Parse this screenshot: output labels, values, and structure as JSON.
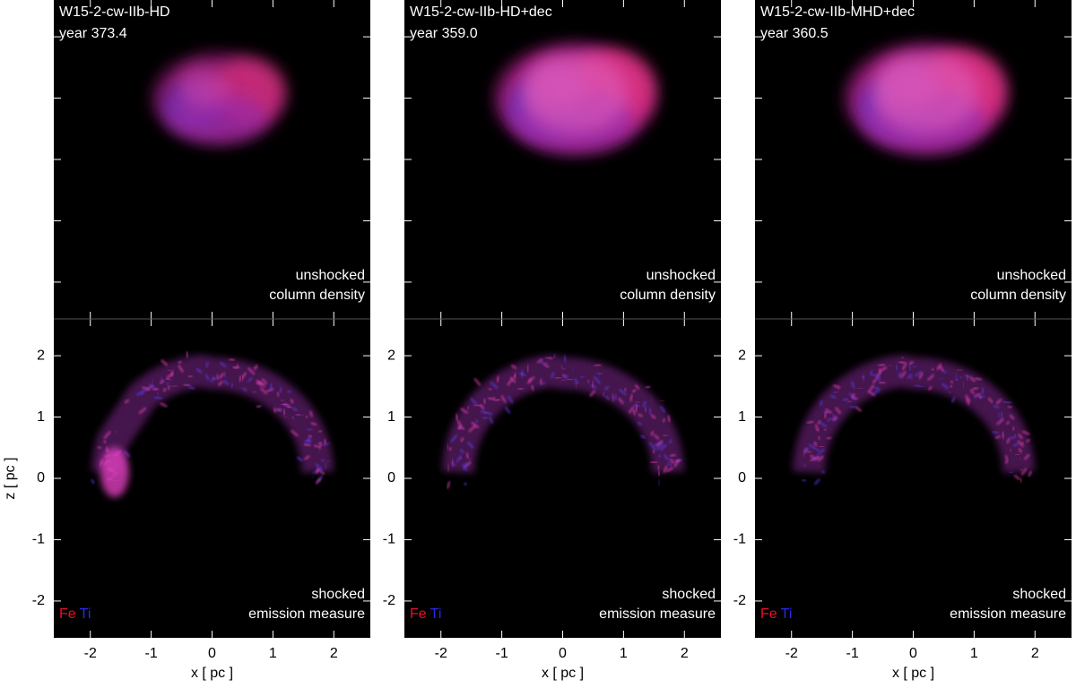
{
  "chart_data": [
    {
      "type": "image",
      "title": "W15-2-cw-IIb-HD",
      "subtitle": "year 373.4",
      "panels": [
        {
          "label": [
            "unshocked",
            "column density"
          ]
        },
        {
          "label": [
            "shocked",
            "emission measure"
          ],
          "legend": [
            {
              "name": "Fe",
              "color": "#e8102c"
            },
            {
              "name": "Ti",
              "color": "#2a2ae8"
            }
          ]
        }
      ],
      "xlabel": "x [ pc ]",
      "ylabel": "z [ pc ]",
      "xlim": [
        -2.6,
        2.6
      ],
      "ylim": [
        -2.6,
        2.6
      ],
      "xticks": [
        -2,
        -1,
        0,
        1,
        2
      ],
      "yticks": [
        -2,
        -1,
        0,
        1,
        2
      ]
    },
    {
      "type": "image",
      "title": "W15-2-cw-IIb-HD+dec",
      "subtitle": "year 359.0",
      "panels": [
        {
          "label": [
            "unshocked",
            "column density"
          ]
        },
        {
          "label": [
            "shocked",
            "emission measure"
          ],
          "legend": [
            {
              "name": "Fe",
              "color": "#e8102c"
            },
            {
              "name": "Ti",
              "color": "#2a2ae8"
            }
          ]
        }
      ],
      "xlabel": "x [ pc ]",
      "xlim": [
        -2.6,
        2.6
      ],
      "ylim": [
        -2.6,
        2.6
      ],
      "xticks": [
        -2,
        -1,
        0,
        1,
        2
      ],
      "yticks": [
        -2,
        -1,
        0,
        1,
        2
      ]
    },
    {
      "type": "image",
      "title": "W15-2-cw-IIb-MHD+dec",
      "subtitle": "year 360.5",
      "panels": [
        {
          "label": [
            "unshocked",
            "column density"
          ]
        },
        {
          "label": [
            "shocked",
            "emission measure"
          ],
          "legend": [
            {
              "name": "Fe",
              "color": "#e8102c"
            },
            {
              "name": "Ti",
              "color": "#2a2ae8"
            }
          ]
        }
      ],
      "xlabel": "x [ pc ]",
      "xlim": [
        -2.6,
        2.6
      ],
      "ylim": [
        -2.6,
        2.6
      ],
      "xticks": [
        -2,
        -1,
        0,
        1,
        2
      ],
      "yticks": [
        -2,
        -1,
        0,
        1,
        2
      ]
    }
  ]
}
